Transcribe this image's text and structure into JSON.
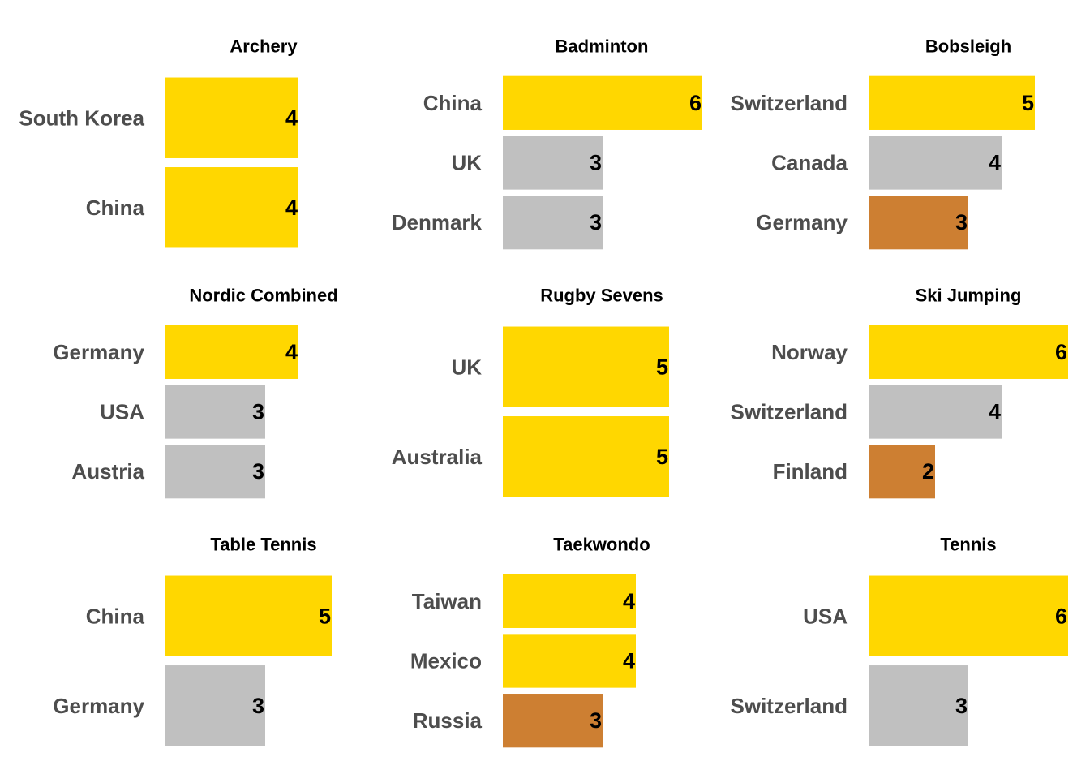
{
  "chart_data": [
    {
      "type": "bar",
      "orientation": "horizontal",
      "title": "Archery",
      "categories": [
        "South Korea",
        "China"
      ],
      "values": [
        4,
        4
      ],
      "medals": [
        "gold",
        "gold"
      ]
    },
    {
      "type": "bar",
      "orientation": "horizontal",
      "title": "Badminton",
      "categories": [
        "China",
        "UK",
        "Denmark"
      ],
      "values": [
        6,
        3,
        3
      ],
      "medals": [
        "gold",
        "silver",
        "silver"
      ]
    },
    {
      "type": "bar",
      "orientation": "horizontal",
      "title": "Bobsleigh",
      "categories": [
        "Switzerland",
        "Canada",
        "Germany"
      ],
      "values": [
        5,
        4,
        3
      ],
      "medals": [
        "gold",
        "silver",
        "bronze"
      ]
    },
    {
      "type": "bar",
      "orientation": "horizontal",
      "title": "Nordic Combined",
      "categories": [
        "Germany",
        "USA",
        "Austria"
      ],
      "values": [
        4,
        3,
        3
      ],
      "medals": [
        "gold",
        "silver",
        "silver"
      ]
    },
    {
      "type": "bar",
      "orientation": "horizontal",
      "title": "Rugby Sevens",
      "categories": [
        "UK",
        "Australia"
      ],
      "values": [
        5,
        5
      ],
      "medals": [
        "gold",
        "gold"
      ]
    },
    {
      "type": "bar",
      "orientation": "horizontal",
      "title": "Ski Jumping",
      "categories": [
        "Norway",
        "Switzerland",
        "Finland"
      ],
      "values": [
        6,
        4,
        2
      ],
      "medals": [
        "gold",
        "silver",
        "bronze"
      ]
    },
    {
      "type": "bar",
      "orientation": "horizontal",
      "title": "Table Tennis",
      "categories": [
        "China",
        "Germany"
      ],
      "values": [
        5,
        3
      ],
      "medals": [
        "gold",
        "silver"
      ]
    },
    {
      "type": "bar",
      "orientation": "horizontal",
      "title": "Taekwondo",
      "categories": [
        "Taiwan",
        "Mexico",
        "Russia"
      ],
      "values": [
        4,
        4,
        3
      ],
      "medals": [
        "gold",
        "gold",
        "bronze"
      ]
    },
    {
      "type": "bar",
      "orientation": "horizontal",
      "title": "Tennis",
      "categories": [
        "USA",
        "Switzerland"
      ],
      "values": [
        6,
        3
      ],
      "medals": [
        "gold",
        "silver"
      ]
    }
  ],
  "xlim": [
    0,
    6
  ],
  "colors": {
    "gold": "#FFD700",
    "silver": "#C0C0C0",
    "bronze": "#CD7F32"
  }
}
